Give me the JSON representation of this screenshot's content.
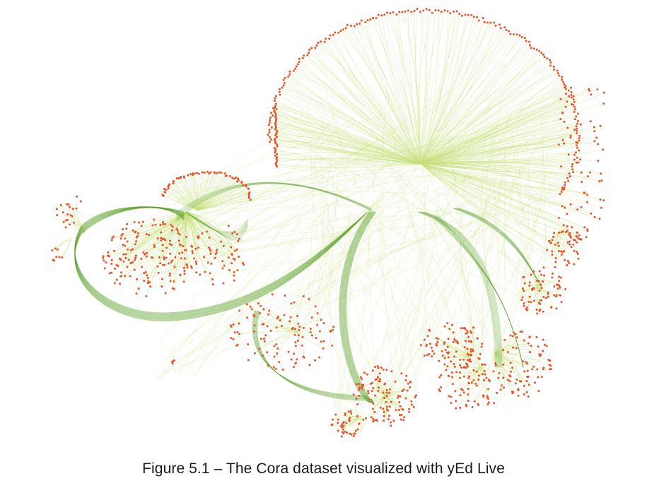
{
  "caption": "Figure 5.1 – The Cora dataset visualized with yEd Live",
  "colors": {
    "node": "#e8542a",
    "edge_light": "#c7e07a",
    "edge_dark": "#5aa028",
    "background": "#ffffff"
  },
  "graph": {
    "node_shape": "dot",
    "edge_style": "curved-bundled"
  }
}
